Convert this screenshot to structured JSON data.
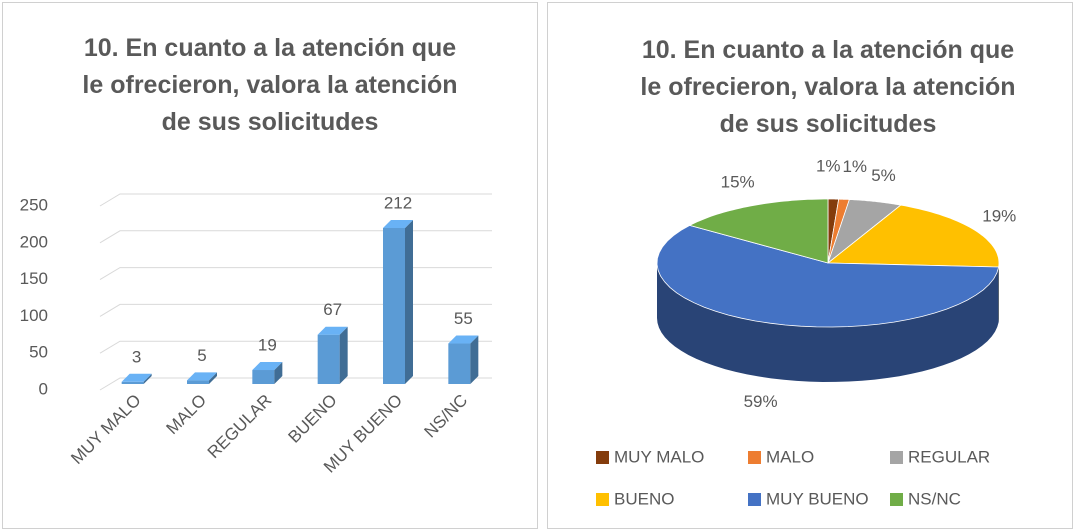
{
  "chart_data": [
    {
      "type": "bar",
      "title": "10. En cuanto a la atención que le ofrecieron, valora la atención de sus solicitudes",
      "categories": [
        "MUY MALO",
        "MALO",
        "REGULAR",
        "BUENO",
        "MUY BUENO",
        "NS/NC"
      ],
      "values": [
        3,
        5,
        19,
        67,
        212,
        55
      ],
      "color": "#5b9bd5",
      "ylim": [
        0,
        250
      ],
      "yticks": [
        0,
        50,
        100,
        150,
        200,
        250
      ],
      "grid": true
    },
    {
      "type": "pie",
      "title": "10. En cuanto a la atención que le ofrecieron, valora la atención de sus solicitudes",
      "categories": [
        "MUY MALO",
        "MALO",
        "REGULAR",
        "BUENO",
        "MUY BUENO",
        "NS/NC"
      ],
      "values": [
        1,
        1,
        5,
        19,
        59,
        15
      ],
      "value_labels": [
        "1%",
        "1%",
        "5%",
        "19%",
        "59%",
        "15%"
      ],
      "colors": [
        "#843c0c",
        "#ed7d31",
        "#a5a5a5",
        "#ffc000",
        "#4472c4",
        "#70ad47"
      ],
      "legend": "bottom"
    }
  ]
}
